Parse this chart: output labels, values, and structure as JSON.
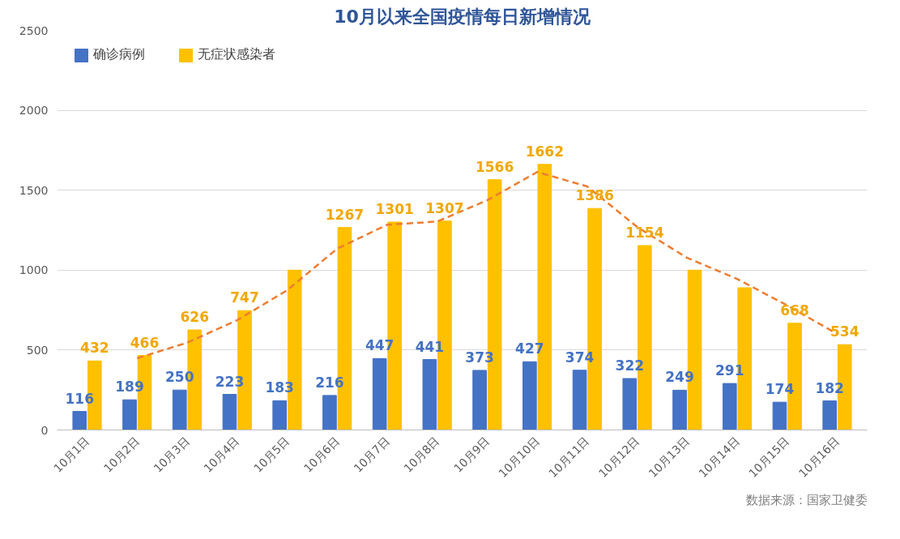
{
  "chart_data": {
    "type": "bar",
    "title": "10月以来全国疫情每日新增情况",
    "categories": [
      "10月1日",
      "10月2日",
      "10月3日",
      "10月4日",
      "10月5日",
      "10月6日",
      "10月7日",
      "10月8日",
      "10月9日",
      "10月10日",
      "10月11日",
      "10月12日",
      "10月13日",
      "10月14日",
      "10月15日",
      "10月16日"
    ],
    "series": [
      {
        "name": "确诊病例",
        "color": "#4472c4",
        "values": [
          116,
          189,
          250,
          223,
          183,
          216,
          447,
          441,
          373,
          427,
          374,
          322,
          249,
          291,
          174,
          182
        ],
        "value_labels": [
          "116",
          "189",
          "250",
          "223",
          "183",
          "216",
          "447",
          "441",
          "373",
          "427",
          "374",
          "322",
          "249",
          "291",
          "174",
          "182"
        ]
      },
      {
        "name": "无症状感染者",
        "color": "#ffc000",
        "values": [
          432,
          466,
          626,
          747,
          1000,
          1267,
          1301,
          1307,
          1566,
          1662,
          1386,
          1154,
          1000,
          890,
          668,
          534
        ],
        "value_labels": [
          "432",
          "466",
          "626",
          "747",
          null,
          "1267",
          "1301",
          "1307",
          "1566",
          "1662",
          "1386",
          "1154",
          null,
          null,
          "668",
          "534"
        ]
      },
      {
        "type": "line",
        "color": "#ed7d31",
        "line_style": "dashed",
        "values": [
          null,
          449,
          546,
          687,
          874,
          1134,
          1284,
          1304,
          1437,
          1614,
          1524,
          1270,
          1077,
          945,
          779,
          601
        ]
      }
    ],
    "ylim": [
      0,
      2500
    ],
    "yticks": [
      0,
      500,
      1000,
      1500,
      2000,
      2500
    ],
    "grid": "y",
    "legend": "top left",
    "annotations": [
      "数据来源：国家卫健委"
    ]
  }
}
